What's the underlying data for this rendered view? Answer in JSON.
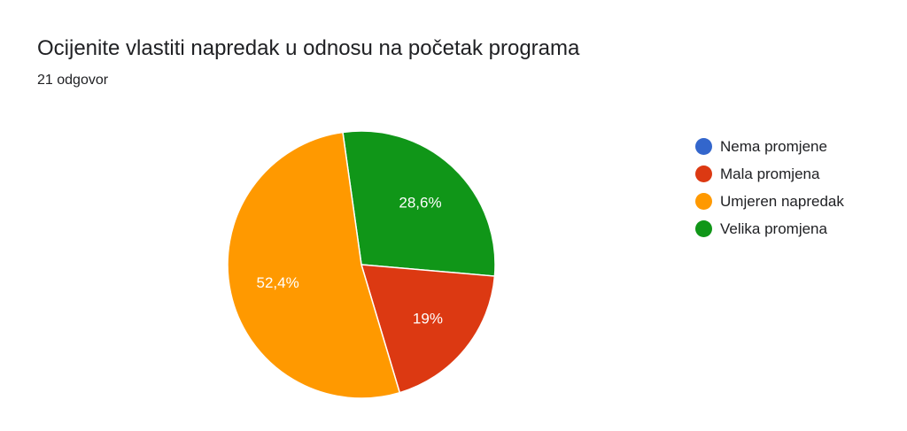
{
  "header": {
    "title": "Ocijenite vlastiti napredak u odnosu na početak programa",
    "subtitle": "21 odgovor"
  },
  "chart_data": {
    "type": "pie",
    "title": "Ocijenite vlastiti napredak u odnosu na početak programa",
    "subtitle": "21 odgovor",
    "legend_position": "right",
    "start_angle_deg": -8,
    "slices": [
      {
        "label": "Velika promjena",
        "percent": 28.6,
        "value_label": "28,6%",
        "color": "#109618"
      },
      {
        "label": "Mala promjena",
        "percent": 19.0,
        "value_label": "19%",
        "color": "#dc3912"
      },
      {
        "label": "Umjeren napredak",
        "percent": 52.4,
        "value_label": "52,4%",
        "color": "#ff9900"
      },
      {
        "label": "Nema promjene",
        "percent": 0,
        "value_label": "",
        "color": "#3366cc"
      }
    ],
    "legend": [
      {
        "label": "Nema promjene",
        "color": "#3366cc"
      },
      {
        "label": "Mala promjena",
        "color": "#dc3912"
      },
      {
        "label": "Umjeren napredak",
        "color": "#ff9900"
      },
      {
        "label": "Velika promjena",
        "color": "#109618"
      }
    ]
  }
}
